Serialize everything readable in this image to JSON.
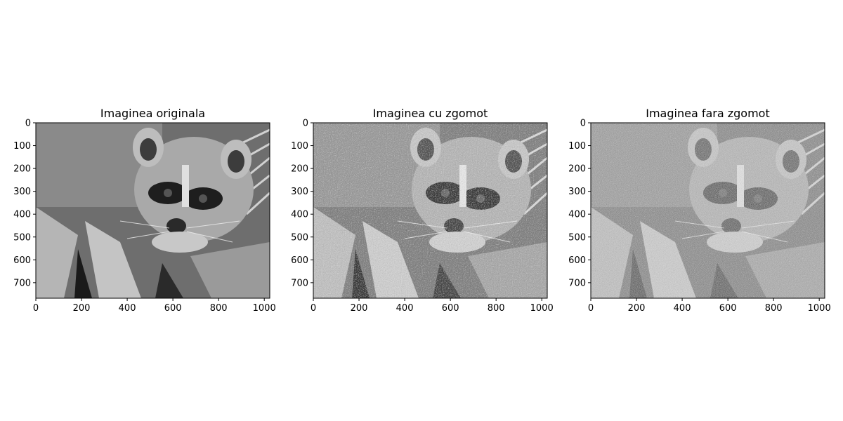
{
  "panels": [
    {
      "title": "Imaginea originala",
      "image_desc": "grayscale raccoon face photo",
      "noise": 0,
      "xticks": [
        "0",
        "200",
        "400",
        "600",
        "800",
        "1000"
      ],
      "yticks": [
        "0",
        "100",
        "200",
        "300",
        "400",
        "500",
        "600",
        "700"
      ]
    },
    {
      "title": "Imaginea cu zgomot",
      "image_desc": "same raccoon photo with strong additive noise",
      "noise": 0.9,
      "xticks": [
        "0",
        "200",
        "400",
        "600",
        "800",
        "1000"
      ],
      "yticks": [
        "0",
        "100",
        "200",
        "300",
        "400",
        "500",
        "600",
        "700"
      ]
    },
    {
      "title": "Imaginea fara zgomot",
      "image_desc": "denoised raccoon photo, still grainy",
      "noise": 0.6,
      "xticks": [
        "0",
        "200",
        "400",
        "600",
        "800",
        "1000"
      ],
      "yticks": [
        "0",
        "100",
        "200",
        "300",
        "400",
        "500",
        "600",
        "700"
      ]
    }
  ],
  "image_extent": {
    "width": 1024,
    "height": 768
  },
  "colors": {
    "axis": "#000000",
    "background": "#ffffff"
  }
}
